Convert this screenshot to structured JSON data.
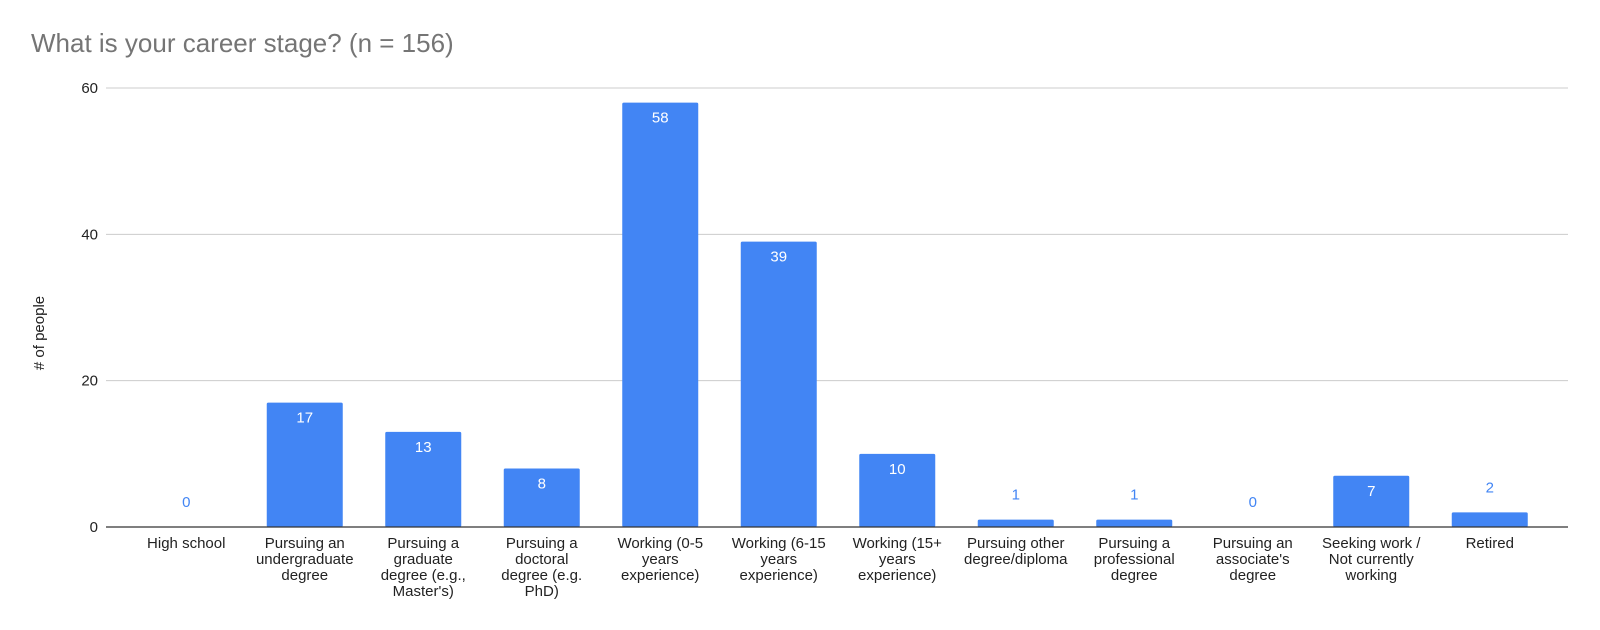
{
  "chart_data": {
    "type": "bar",
    "title": "What is your career stage? (n = 156)",
    "xlabel": "",
    "ylabel": "# of people",
    "ylim": [
      0,
      60
    ],
    "yticks": [
      0,
      20,
      40,
      60
    ],
    "grid": true,
    "legend": "none",
    "bar_color": "#4285f4",
    "categories": [
      "High school",
      "Pursuing an undergraduate degree",
      "Pursuing a graduate degree (e.g., Master's)",
      "Pursuing a doctoral degree (e.g. PhD)",
      "Working (0-5 years experience)",
      "Working (6-15 years experience)",
      "Working (15+ years experience)",
      "Pursuing other degree/diploma",
      "Pursuing a professional degree",
      "Pursuing an associate's degree",
      "Seeking work / Not currently working",
      "Retired"
    ],
    "category_lines": [
      [
        "High school"
      ],
      [
        "Pursuing an",
        "undergraduate",
        "degree"
      ],
      [
        "Pursuing a",
        "graduate",
        "degree (e.g.,",
        "Master's)"
      ],
      [
        "Pursuing a",
        "doctoral",
        "degree (e.g.",
        "PhD)"
      ],
      [
        "Working (0-5",
        "years",
        "experience)"
      ],
      [
        "Working (6-15",
        "years",
        "experience)"
      ],
      [
        "Working (15+",
        "years",
        "experience)"
      ],
      [
        "Pursuing other",
        "degree/diploma"
      ],
      [
        "Pursuing a",
        "professional",
        "degree"
      ],
      [
        "Pursuing an",
        "associate's",
        "degree"
      ],
      [
        "Seeking work /",
        "Not currently",
        "working"
      ],
      [
        "Retired"
      ]
    ],
    "values": [
      0,
      17,
      13,
      8,
      58,
      39,
      10,
      1,
      1,
      0,
      7,
      2
    ]
  }
}
